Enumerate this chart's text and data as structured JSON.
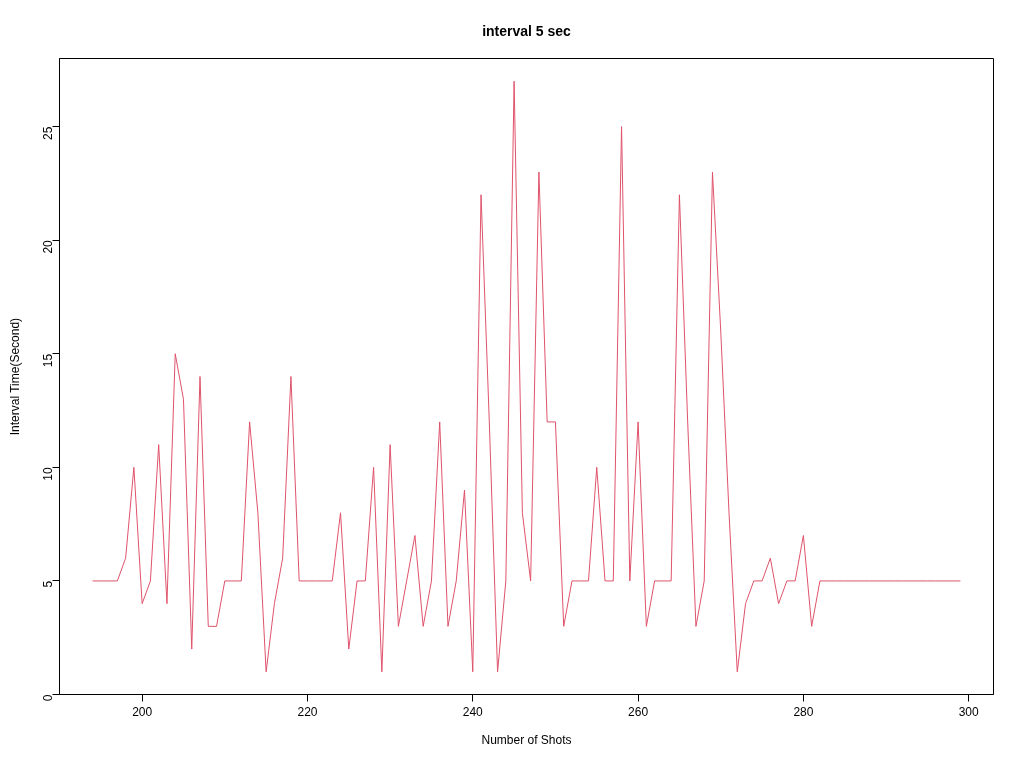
{
  "chart_data": {
    "type": "line",
    "title": "interval 5 sec",
    "xlabel": "Number of Shots",
    "ylabel": "Interval Time(Second)",
    "x": [
      194,
      195,
      196,
      197,
      198,
      199,
      200,
      201,
      202,
      203,
      204,
      205,
      206,
      207,
      208,
      209,
      210,
      211,
      212,
      213,
      214,
      215,
      216,
      217,
      218,
      219,
      220,
      221,
      222,
      223,
      224,
      225,
      226,
      227,
      228,
      229,
      230,
      231,
      232,
      233,
      234,
      235,
      236,
      237,
      238,
      239,
      240,
      241,
      242,
      243,
      244,
      245,
      246,
      247,
      248,
      249,
      250,
      251,
      252,
      253,
      254,
      255,
      256,
      257,
      258,
      259,
      260,
      261,
      262,
      263,
      264,
      265,
      266,
      267,
      268,
      269,
      270,
      271,
      272,
      273,
      274,
      275,
      276,
      277,
      278,
      279,
      280,
      281,
      282,
      283,
      284,
      285,
      286,
      287,
      288,
      289,
      290,
      291,
      292,
      293,
      294,
      295,
      296,
      297,
      298,
      299
    ],
    "values": [
      5,
      5,
      5,
      5,
      6,
      10,
      4,
      5,
      11,
      4,
      15,
      13,
      2,
      14,
      3,
      3,
      5,
      5,
      5,
      12,
      8,
      1,
      4,
      6,
      14,
      5,
      5,
      5,
      5,
      5,
      8,
      2,
      5,
      5,
      10,
      1,
      11,
      3,
      5,
      7,
      3,
      5,
      12,
      3,
      5,
      9,
      1,
      22,
      12,
      1,
      5,
      27,
      8,
      5,
      23,
      12,
      12,
      3,
      5,
      5,
      5,
      10,
      5,
      5,
      25,
      5,
      12,
      3,
      5,
      5,
      5,
      22,
      12,
      3,
      5,
      23,
      16,
      8,
      1,
      4,
      5,
      5,
      6,
      4,
      5,
      5,
      7,
      3,
      5,
      5,
      5,
      5,
      5,
      5,
      5,
      5,
      5,
      5,
      5,
      5,
      5,
      5,
      5,
      5,
      5,
      5
    ],
    "color": "#df536b",
    "xlim": [
      190,
      303
    ],
    "ylim": [
      0,
      28
    ],
    "xticks": [
      200,
      220,
      240,
      260,
      280,
      300
    ],
    "yticks": [
      0,
      5,
      10,
      15,
      20,
      25
    ],
    "grid": false
  }
}
